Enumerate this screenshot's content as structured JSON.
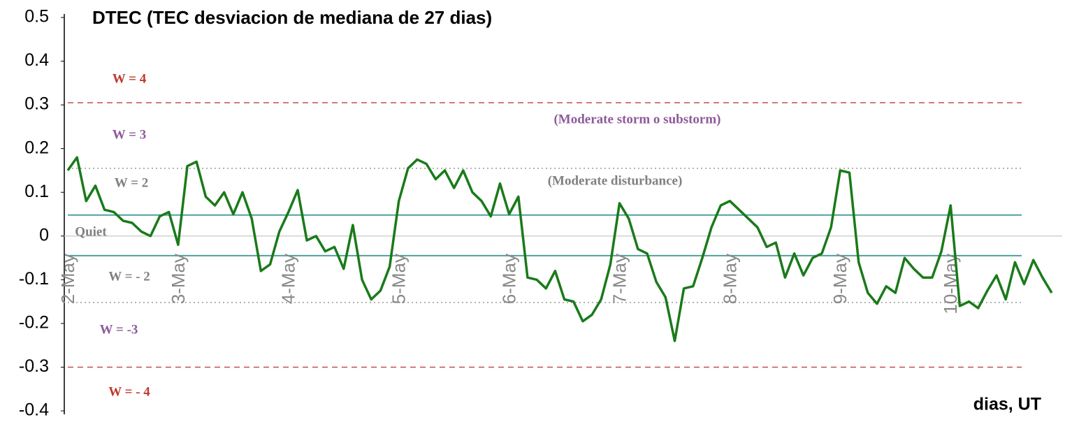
{
  "chart_data": {
    "type": "line",
    "title": "DTEC (TEC desviacion de mediana de 27 dias)",
    "x_label": "dias, UT",
    "categories": [
      "2-May",
      null,
      null,
      null,
      null,
      null,
      null,
      null,
      null,
      null,
      null,
      null,
      "3-May",
      null,
      null,
      null,
      null,
      null,
      null,
      null,
      null,
      null,
      null,
      null,
      "4-May",
      null,
      null,
      null,
      null,
      null,
      null,
      null,
      null,
      null,
      null,
      null,
      "5-May",
      null,
      null,
      null,
      null,
      null,
      null,
      null,
      null,
      null,
      null,
      null,
      "6-May",
      null,
      null,
      null,
      null,
      null,
      null,
      null,
      null,
      null,
      null,
      null,
      "7-May",
      null,
      null,
      null,
      null,
      null,
      null,
      null,
      null,
      null,
      null,
      null,
      "8-May",
      null,
      null,
      null,
      null,
      null,
      null,
      null,
      null,
      null,
      null,
      null,
      "9-May",
      null,
      null,
      null,
      null,
      null,
      null,
      null,
      null,
      null,
      null,
      null,
      "10-May",
      null,
      null,
      null,
      null,
      null,
      null,
      null,
      null,
      null,
      null,
      null
    ],
    "series": [
      {
        "name": "DTEC",
        "color": "#1a7a1a",
        "values": [
          0.15,
          0.18,
          0.08,
          0.115,
          0.06,
          0.055,
          0.035,
          0.03,
          0.01,
          0.0,
          0.045,
          0.055,
          -0.02,
          0.16,
          0.17,
          0.09,
          0.07,
          0.1,
          0.05,
          0.1,
          0.04,
          -0.08,
          -0.065,
          0.01,
          0.055,
          0.105,
          -0.01,
          0.0,
          -0.035,
          -0.025,
          -0.075,
          0.025,
          -0.1,
          -0.145,
          -0.125,
          -0.07,
          0.08,
          0.155,
          0.175,
          0.165,
          0.13,
          0.15,
          0.11,
          0.15,
          0.1,
          0.08,
          0.045,
          0.12,
          0.05,
          0.09,
          -0.095,
          -0.1,
          -0.12,
          -0.08,
          -0.145,
          -0.15,
          -0.195,
          -0.18,
          -0.145,
          -0.065,
          0.075,
          0.04,
          -0.03,
          -0.04,
          -0.105,
          -0.14,
          -0.24,
          -0.12,
          -0.115,
          -0.05,
          0.02,
          0.07,
          0.08,
          0.06,
          0.04,
          0.02,
          -0.025,
          -0.015,
          -0.095,
          -0.04,
          -0.09,
          -0.05,
          -0.04,
          0.02,
          0.15,
          0.145,
          -0.06,
          -0.13,
          -0.155,
          -0.115,
          -0.13,
          -0.05,
          -0.075,
          -0.095,
          -0.095,
          -0.035,
          0.07,
          -0.16,
          -0.15,
          -0.165,
          -0.125,
          -0.09,
          -0.145,
          -0.06,
          -0.11,
          -0.055,
          -0.095,
          -0.13
        ]
      }
    ],
    "ylim": [
      -0.4,
      0.5
    ],
    "yticks": [
      0.5,
      0.4,
      0.3,
      0.2,
      0.1,
      0,
      -0.1,
      -0.2,
      -0.3,
      -0.4
    ],
    "reference_lines": [
      {
        "value": 0.305,
        "color": "#c0504d",
        "style": "dashed"
      },
      {
        "value": 0.155,
        "color": "#999999",
        "style": "dotted"
      },
      {
        "value": 0.048,
        "color": "#4f9fa0",
        "style": "solid"
      },
      {
        "value": -0.045,
        "color": "#4f9fa0",
        "style": "solid"
      },
      {
        "value": -0.152,
        "color": "#999999",
        "style": "dotted"
      },
      {
        "value": -0.3,
        "color": "#c0504d",
        "style": "dashed"
      }
    ],
    "annotations": [
      {
        "text": "W = 4",
        "color": "#c0392b"
      },
      {
        "text": "W = 3",
        "color": "#8e5a9a"
      },
      {
        "text": "W = 2",
        "color": "#808080"
      },
      {
        "text": "Quiet",
        "color": "#808080"
      },
      {
        "text": "W = - 2",
        "color": "#808080"
      },
      {
        "text": "W = -3",
        "color": "#8e5a9a"
      },
      {
        "text": "W = - 4",
        "color": "#c0392b"
      },
      {
        "text": "(Moderate storm o substorm)",
        "color": "#8e5a9a"
      },
      {
        "text": "(Moderate disturbance)",
        "color": "#808080"
      }
    ]
  }
}
